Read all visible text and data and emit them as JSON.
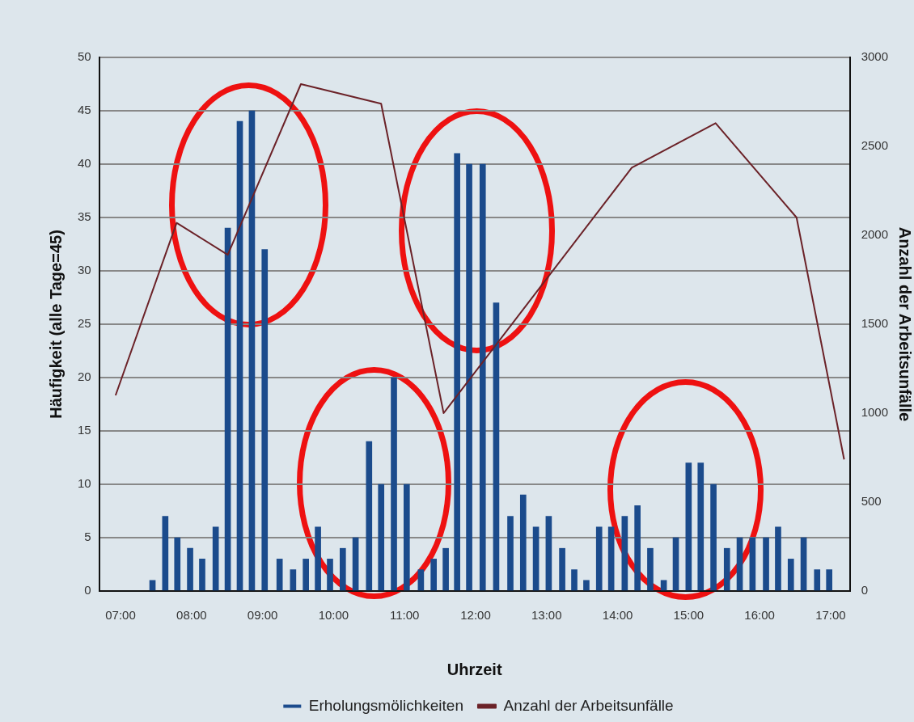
{
  "chart_data": {
    "type": "bar",
    "xlabel": "Uhrzeit",
    "ylabel": "Häufigkeit (alle Tage=45)",
    "y2label": "Anzahl der Arbeitsunfälle",
    "xlim": [
      6.7,
      17.27
    ],
    "xticks": [
      {
        "value": 7,
        "label": "07:00"
      },
      {
        "value": 8,
        "label": "08:00"
      },
      {
        "value": 9,
        "label": "09:00"
      },
      {
        "value": 10,
        "label": "10:00"
      },
      {
        "value": 11,
        "label": "11:00"
      },
      {
        "value": 12,
        "label": "12:00"
      },
      {
        "value": 13,
        "label": "13:00"
      },
      {
        "value": 14,
        "label": "14:00"
      },
      {
        "value": 15,
        "label": "15:00"
      },
      {
        "value": 16,
        "label": "16:00"
      },
      {
        "value": 17,
        "label": "17:00"
      }
    ],
    "ylim": [
      0,
      50
    ],
    "yticks": [
      0,
      5,
      10,
      15,
      20,
      25,
      30,
      35,
      40,
      45,
      50
    ],
    "y2lim": [
      0,
      3000
    ],
    "y2ticks": [
      0,
      500,
      1000,
      1500,
      2000,
      2500,
      3000
    ],
    "grid": "y",
    "legend": "bottom",
    "series": [
      {
        "name": "Erholungsmölichkeiten",
        "color": "#1b4b8c",
        "x": [
          7.45,
          7.63,
          7.8,
          7.98,
          8.15,
          8.34,
          8.51,
          8.68,
          8.85,
          9.03,
          9.24,
          9.43,
          9.61,
          9.78,
          9.95,
          10.13,
          10.31,
          10.5,
          10.67,
          10.85,
          11.03,
          11.23,
          11.41,
          11.58,
          11.74,
          11.91,
          12.1,
          12.29,
          12.49,
          12.67,
          12.85,
          13.03,
          13.22,
          13.39,
          13.56,
          13.74,
          13.91,
          14.1,
          14.28,
          14.46,
          14.65,
          14.82,
          15.0,
          15.17,
          15.35,
          15.54,
          15.72,
          15.9,
          16.09,
          16.26,
          16.44,
          16.62,
          16.81,
          16.98
        ],
        "values": [
          1,
          7,
          5,
          4,
          3,
          6,
          34,
          44,
          45,
          32,
          3,
          2,
          3,
          6,
          3,
          4,
          5,
          14,
          10,
          20,
          10,
          2,
          3,
          4,
          41,
          40,
          40,
          27,
          7,
          9,
          6,
          7,
          4,
          2,
          1,
          6,
          6,
          7,
          8,
          4,
          1,
          5,
          12,
          12,
          10,
          4,
          5,
          5,
          5,
          6,
          3,
          5,
          2,
          2
        ]
      },
      {
        "name": "Anzahl der Arbeitsunfälle",
        "type": "line",
        "axis": "y2",
        "color": "#6b2228",
        "marker": "none",
        "x": [
          6.93,
          7.79,
          8.51,
          9.54,
          10.67,
          11.55,
          14.2,
          15.38,
          16.52,
          17.19
        ],
        "values": [
          1100,
          2070,
          1890,
          2850,
          2740,
          1000,
          2380,
          2630,
          2100,
          740
        ]
      }
    ]
  }
}
